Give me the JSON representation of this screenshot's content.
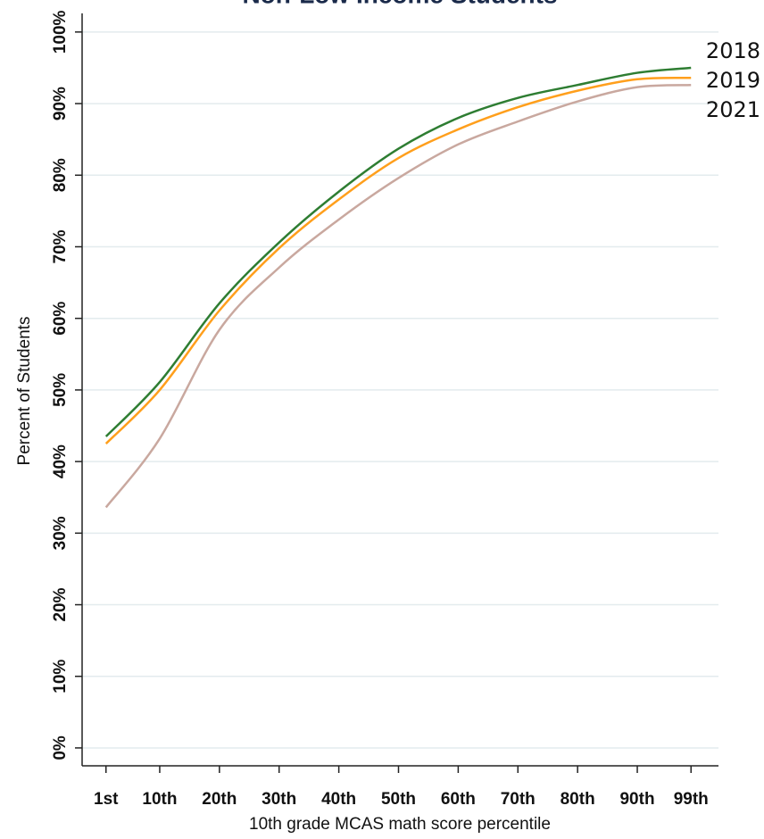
{
  "chart_data": {
    "type": "line",
    "title": "Non-Low Income Students",
    "x_label": "10th grade MCAS math score percentile",
    "y_label": "Percent of Students",
    "x": [
      1,
      10,
      20,
      30,
      40,
      50,
      60,
      70,
      80,
      90,
      99
    ],
    "xlim": [
      -3,
      103.6
    ],
    "xticks": [
      {
        "value": 1,
        "label": "1st"
      },
      {
        "value": 10,
        "label": "10th"
      },
      {
        "value": 20,
        "label": "20th"
      },
      {
        "value": 30,
        "label": "30th"
      },
      {
        "value": 40,
        "label": "40th"
      },
      {
        "value": 50,
        "label": "50th"
      },
      {
        "value": 60,
        "label": "60th"
      },
      {
        "value": 70,
        "label": "70th"
      },
      {
        "value": 80,
        "label": "80th"
      },
      {
        "value": 90,
        "label": "90th"
      },
      {
        "value": 99,
        "label": "99th"
      }
    ],
    "ylim": [
      -2.5,
      102.6
    ],
    "yticks": [
      {
        "value": 0,
        "label": "0%"
      },
      {
        "value": 10,
        "label": "10%"
      },
      {
        "value": 20,
        "label": "20%"
      },
      {
        "value": 30,
        "label": "30%"
      },
      {
        "value": 40,
        "label": "40%"
      },
      {
        "value": 50,
        "label": "50%"
      },
      {
        "value": 60,
        "label": "60%"
      },
      {
        "value": 70,
        "label": "70%"
      },
      {
        "value": 80,
        "label": "80%"
      },
      {
        "value": 90,
        "label": "90%"
      },
      {
        "value": 100,
        "label": "100%"
      }
    ],
    "grid": true,
    "series": [
      {
        "name": "2018",
        "color": "#2e7d32",
        "values": [
          43.5,
          51.1,
          62.1,
          70.6,
          77.7,
          83.7,
          88.0,
          90.8,
          92.6,
          94.3,
          95.0
        ]
      },
      {
        "name": "2019",
        "color": "#ff9f1c",
        "values": [
          42.5,
          50.0,
          61.1,
          69.8,
          76.6,
          82.4,
          86.4,
          89.5,
          91.8,
          93.4,
          93.6
        ]
      },
      {
        "name": "2021",
        "color": "#c9a89f",
        "values": [
          33.6,
          43.2,
          58.4,
          67.1,
          73.8,
          79.6,
          84.3,
          87.5,
          90.3,
          92.3,
          92.6
        ]
      }
    ]
  }
}
